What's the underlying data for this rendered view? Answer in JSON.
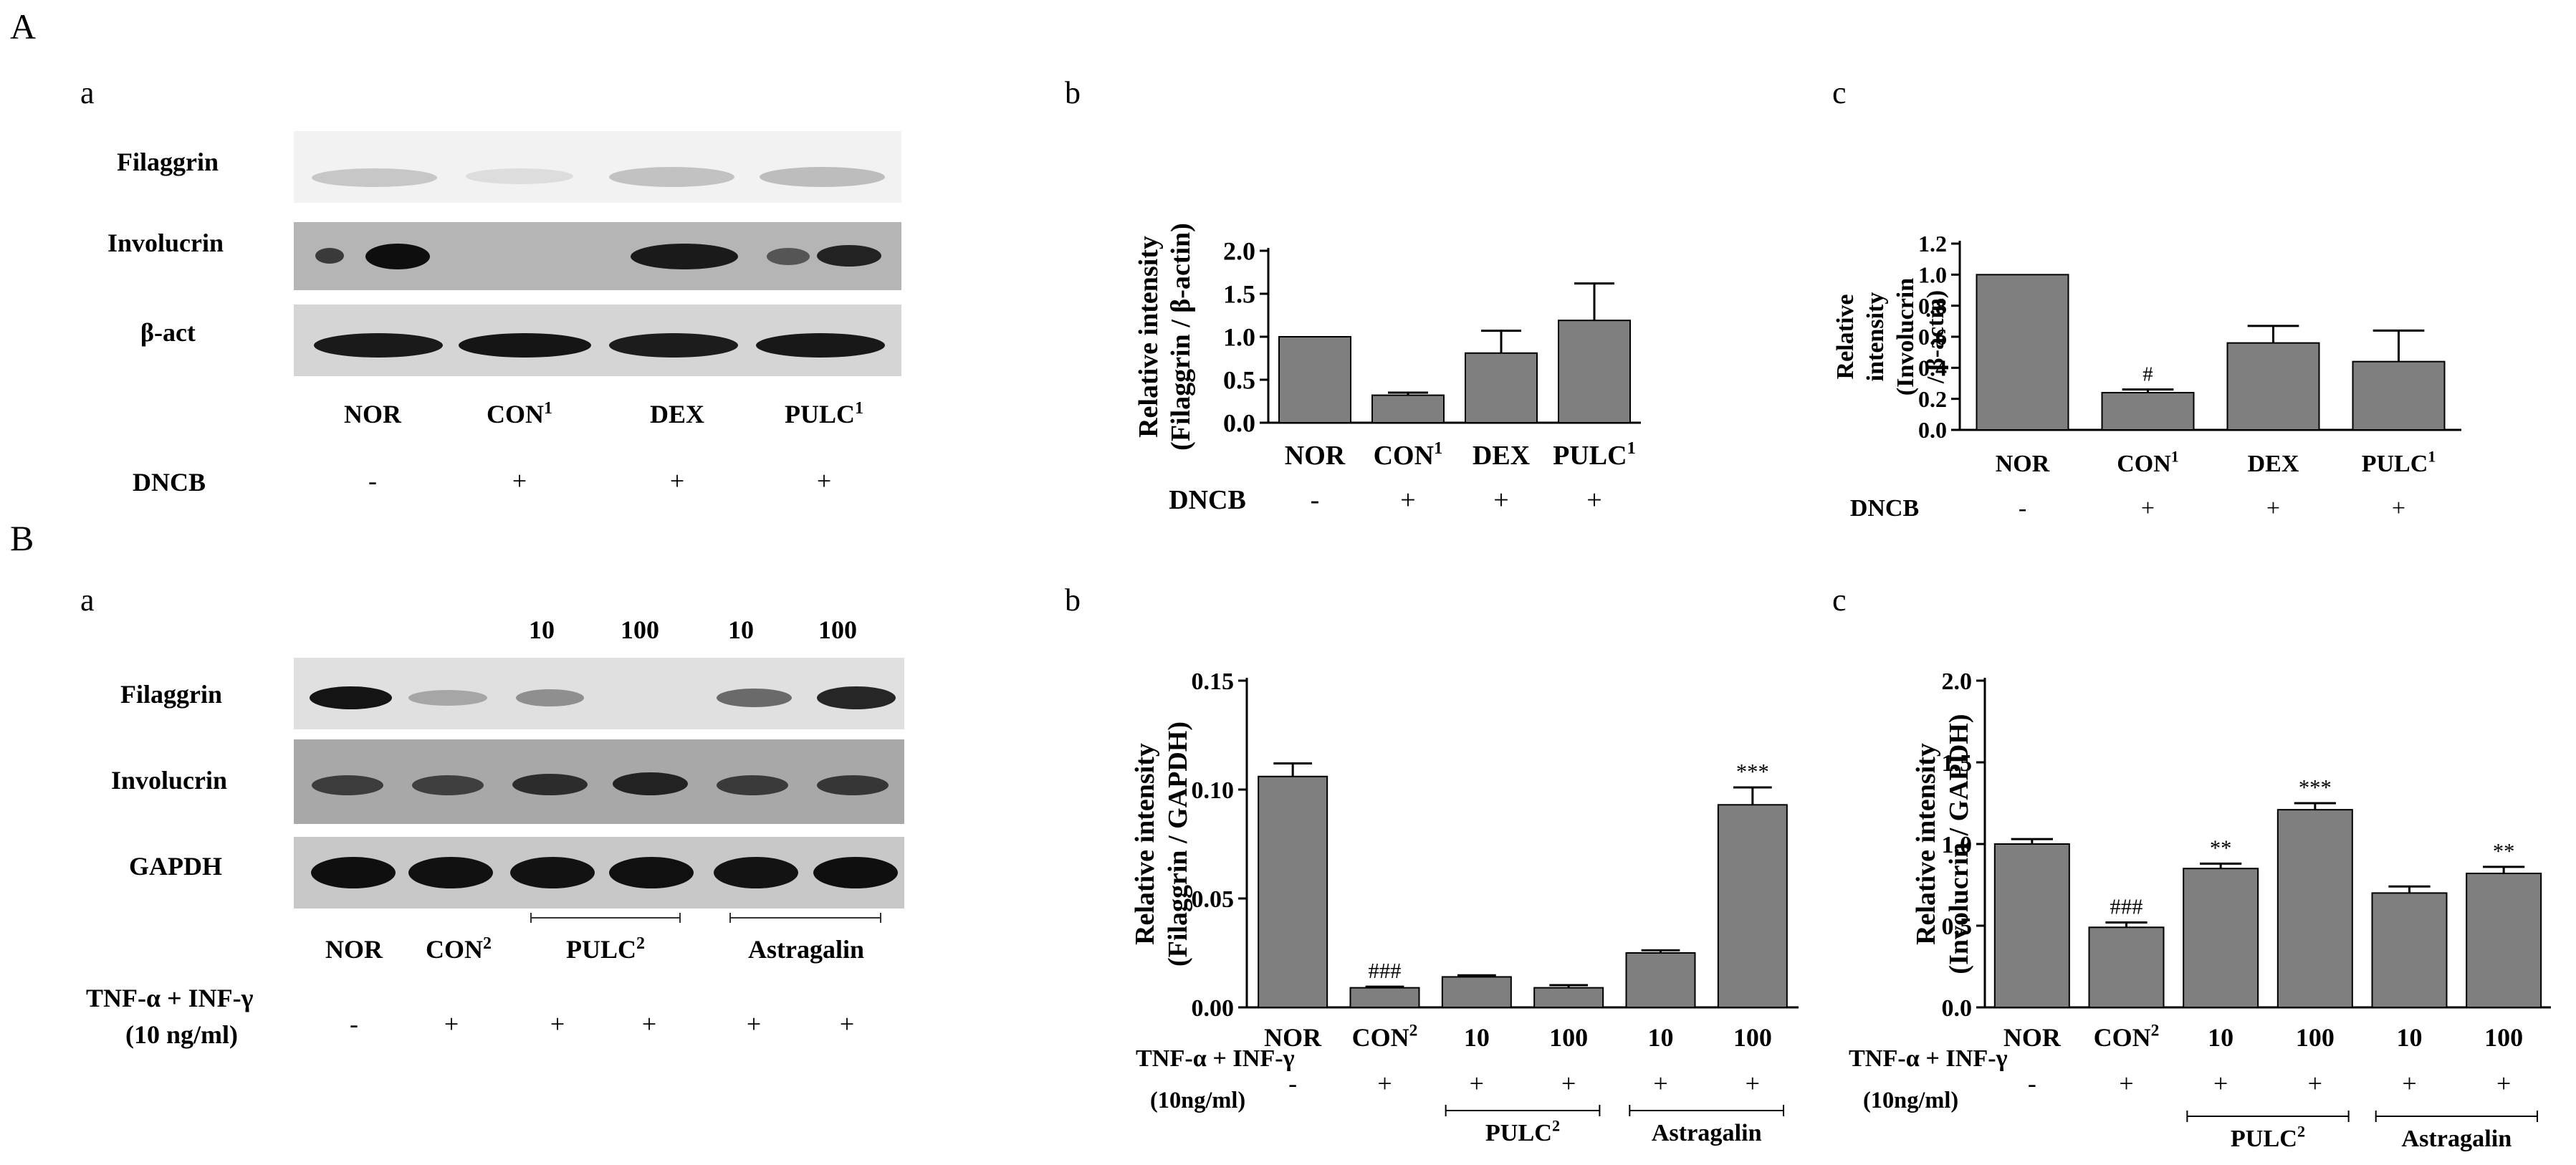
{
  "panels": {
    "A": {
      "letter": "A",
      "blot": {
        "sub": "a",
        "rows": [
          "Filaggrin",
          "Involucrin",
          "β-act"
        ],
        "lanes": [
          "NOR",
          "CON",
          "DEX",
          "PULC"
        ],
        "lane_sup": [
          "",
          "1",
          "",
          "1"
        ],
        "treatment_label": "DNCB",
        "treatment_signs": [
          "-",
          "+",
          "+",
          "+"
        ]
      },
      "charts_sub": [
        "b",
        "c"
      ]
    },
    "B": {
      "letter": "B",
      "blot": {
        "sub": "a",
        "doses": [
          "10",
          "100",
          "10",
          "100"
        ],
        "rows": [
          "Filaggrin",
          "Involucrin",
          "GAPDH"
        ],
        "lanes": [
          "NOR",
          "CON",
          "PULC",
          "Astragalin"
        ],
        "lane_sup": [
          "",
          "2",
          "2",
          ""
        ],
        "treatment_label_1": "TNF-α + INF-γ",
        "treatment_label_2": "(10 ng/ml)",
        "treatment_signs": [
          "-",
          "+",
          "+",
          "+",
          "+",
          "+"
        ]
      },
      "charts_sub": [
        "b",
        "c"
      ]
    }
  },
  "chart_data": [
    {
      "id": "A-b",
      "type": "bar",
      "categories": [
        "NOR",
        "CON",
        "DEX",
        "PULC"
      ],
      "category_sup": [
        "",
        "1",
        "",
        "1"
      ],
      "values": [
        1.0,
        0.32,
        0.81,
        1.19
      ],
      "errors": [
        0.0,
        0.03,
        0.26,
        0.43
      ],
      "ylabel_1": "Relative intensity",
      "ylabel_2": "(Filaggrin / β-actin)",
      "ylim": [
        0,
        2.0
      ],
      "yticks": [
        "0.0",
        "0.5",
        "1.0",
        "1.5",
        "2.0"
      ],
      "annotations": [
        "",
        "",
        "",
        ""
      ],
      "treatment_label": "DNCB",
      "treatment_signs": [
        "-",
        "+",
        "+",
        "+"
      ],
      "bar_color": "#7f7f7f"
    },
    {
      "id": "A-c",
      "type": "bar",
      "categories": [
        "NOR",
        "CON",
        "DEX",
        "PULC"
      ],
      "category_sup": [
        "",
        "1",
        "",
        "1"
      ],
      "values": [
        1.0,
        0.24,
        0.56,
        0.44
      ],
      "errors": [
        0.0,
        0.02,
        0.11,
        0.2
      ],
      "ylabel_1": "Relative",
      "ylabel_2": "intensity",
      "ylabel_3": "(Involucrin",
      "ylabel_4": "/ β-actin)",
      "ylim": [
        0,
        1.2
      ],
      "yticks": [
        "0.0",
        "0.2",
        "0.4",
        "0.6",
        "0.8",
        "1.0",
        "1.2"
      ],
      "annotations": [
        "",
        "#",
        "",
        ""
      ],
      "treatment_label": "DNCB",
      "treatment_signs": [
        "-",
        "+",
        "+",
        "+"
      ],
      "bar_color": "#7f7f7f"
    },
    {
      "id": "B-b",
      "type": "bar",
      "categories": [
        "NOR",
        "CON",
        "10",
        "100",
        "10",
        "100"
      ],
      "category_sup": [
        "",
        "2",
        "",
        "",
        "",
        ""
      ],
      "values": [
        0.106,
        0.009,
        0.014,
        0.009,
        0.025,
        0.093
      ],
      "errors": [
        0.006,
        0.0005,
        0.0007,
        0.0012,
        0.0012,
        0.008
      ],
      "ylabel_1": "Relative intensity",
      "ylabel_2": "(Filaggrin / GAPDH)",
      "ylim": [
        0,
        0.15
      ],
      "yticks": [
        "0.00",
        "0.05",
        "0.10",
        "0.15"
      ],
      "annotations": [
        "",
        "###",
        "",
        "",
        "",
        "***"
      ],
      "treatment_label_1": "TNF-α + INF-γ",
      "treatment_label_2": "(10ng/ml)",
      "treatment_signs": [
        "-",
        "+",
        "+",
        "+",
        "+",
        "+"
      ],
      "groups": [
        "PULC",
        "Astragalin"
      ],
      "group_sup": [
        "2",
        ""
      ],
      "bar_color": "#7f7f7f"
    },
    {
      "id": "B-c",
      "type": "bar",
      "categories": [
        "NOR",
        "CON",
        "10",
        "100",
        "10",
        "100"
      ],
      "category_sup": [
        "",
        "2",
        "",
        "",
        "",
        ""
      ],
      "values": [
        1.0,
        0.49,
        0.85,
        1.21,
        0.7,
        0.82
      ],
      "errors": [
        0.03,
        0.03,
        0.03,
        0.04,
        0.04,
        0.04
      ],
      "ylabel_1": "Relative intensity",
      "ylabel_2": "(Involucrin / GAPDH)",
      "ylim": [
        0,
        2.0
      ],
      "yticks": [
        "0.0",
        "0.5",
        "1.0",
        "1.5",
        "2.0"
      ],
      "annotations": [
        "",
        "###",
        "**",
        "***",
        "",
        "**"
      ],
      "treatment_label_1": "TNF-α + INF-γ",
      "treatment_label_2": "(10ng/ml)",
      "treatment_signs": [
        "-",
        "+",
        "+",
        "+",
        "+",
        "+"
      ],
      "groups": [
        "PULC",
        "Astragalin"
      ],
      "group_sup": [
        "2",
        ""
      ],
      "bar_color": "#7f7f7f"
    }
  ]
}
